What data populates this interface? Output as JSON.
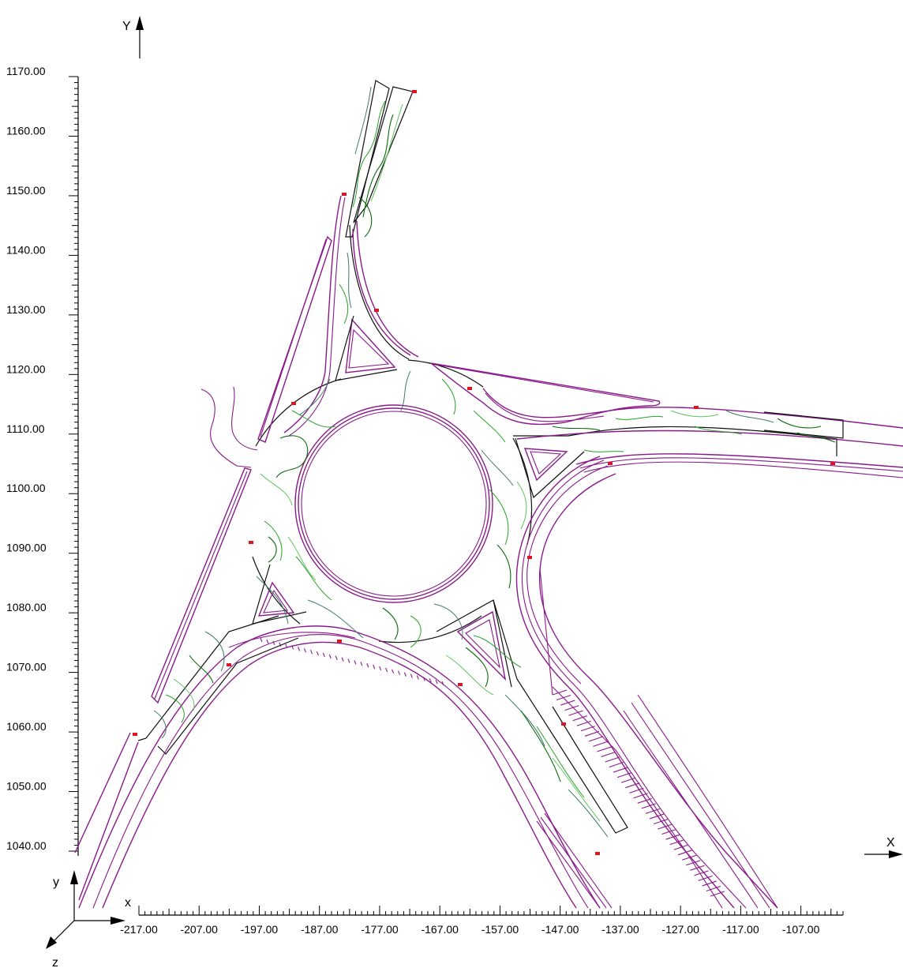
{
  "axes": {
    "y_label": "Y",
    "x_label": "X",
    "y_ticks": [
      "1170.00",
      "1160.00",
      "1150.00",
      "1140.00",
      "1130.00",
      "1120.00",
      "1110.00",
      "1100.00",
      "1090.00",
      "1080.00",
      "1070.00",
      "1060.00",
      "1050.00",
      "1040.00"
    ],
    "x_ticks": [
      "-217.00",
      "-207.00",
      "-197.00",
      "-187.00",
      "-177.00",
      "-167.00",
      "-157.00",
      "-147.00",
      "-137.00",
      "-127.00",
      "-117.00",
      "-107.00"
    ]
  },
  "triad": {
    "x": "x",
    "y": "y",
    "z": "z"
  },
  "colors": {
    "road": "#8a1a8a",
    "outline": "#111111",
    "contour_light": "#5cc65c",
    "contour_mid": "#27a327",
    "contour_dark": "#0a6a0a",
    "contour_teal": "#3d7a6a",
    "marker": "#e0141e"
  }
}
